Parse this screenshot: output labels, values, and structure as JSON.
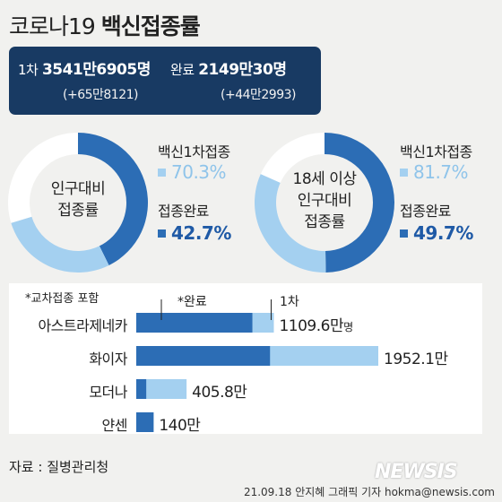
{
  "header": {
    "title_a": "코로나19",
    "title_b": "백신접종률"
  },
  "totals": {
    "first_label": "1차",
    "first_value": "3541만6905명",
    "first_delta": "(+65만8121)",
    "complete_label": "완료",
    "complete_value": "2149만30명",
    "complete_delta": "(+44만2993)"
  },
  "colors": {
    "dark": "#183a63",
    "complete": "#2c6db5",
    "first": "#a4d0f0",
    "remaining": "#ffffff"
  },
  "chart_data": [
    {
      "type": "pie",
      "center_label": [
        "인구대비",
        "접종률"
      ],
      "categories": [
        "백신1차접종",
        "접종완료"
      ],
      "values": [
        70.3,
        42.7
      ],
      "value_labels": [
        "70.3%",
        "42.7%"
      ]
    },
    {
      "type": "pie",
      "center_label": [
        "18세 이상",
        "인구대비",
        "접종률"
      ],
      "categories": [
        "백신1차접종",
        "접종완료"
      ],
      "values": [
        81.7,
        49.7
      ],
      "value_labels": [
        "81.7%",
        "49.7%"
      ]
    },
    {
      "type": "bar",
      "note": "*교차접종 포함",
      "legend": {
        "complete": "*완료",
        "first": "1차"
      },
      "unit": "명",
      "categories": [
        "아스트라제네카",
        "화이자",
        "모더나",
        "얀센"
      ],
      "series": [
        {
          "name": "*완료",
          "values": [
            936.5,
            1078.9,
            80.5,
            140
          ]
        },
        {
          "name": "1차",
          "values": [
            1109.6,
            1952.1,
            405.8,
            140
          ]
        }
      ],
      "value_labels": [
        "1109.6만",
        "1952.1만",
        "405.8만",
        "140만"
      ],
      "xlim": [
        0,
        1952.1
      ]
    }
  ],
  "footer": {
    "source": "자료 : 질병관리청",
    "credit": "21.09.18 안지혜 그래픽 기자 hokma@newsis.com",
    "watermark": "NEWSIS"
  }
}
